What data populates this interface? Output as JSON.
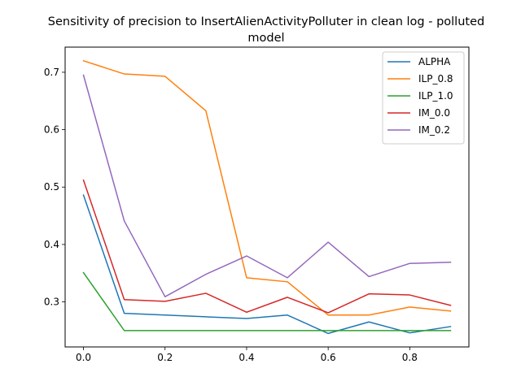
{
  "chart_data": {
    "type": "line",
    "title_lines": [
      "Sensitivity of precision to InsertAlienActivityPolluter in clean log - polluted",
      "model"
    ],
    "xlabel": "",
    "ylabel": "",
    "xlim": [
      -0.045,
      0.945
    ],
    "ylim": [
      0.2215,
      0.7438
    ],
    "xticks": [
      0.0,
      0.2,
      0.4,
      0.6,
      0.8
    ],
    "xtick_labels": [
      "0.0",
      "0.2",
      "0.4",
      "0.6",
      "0.8"
    ],
    "yticks": [
      0.3,
      0.4,
      0.5,
      0.6,
      0.7
    ],
    "ytick_labels": [
      "0.3",
      "0.4",
      "0.5",
      "0.6",
      "0.7"
    ],
    "grid": false,
    "legend_position": "top-right",
    "x": [
      0.0,
      0.1,
      0.2,
      0.3,
      0.4,
      0.5,
      0.6,
      0.7,
      0.8,
      0.9
    ],
    "series": [
      {
        "name": "ALPHA",
        "color": "#1f77b4",
        "values": [
          0.486,
          0.28,
          0.277,
          0.274,
          0.271,
          0.277,
          0.245,
          0.265,
          0.246,
          0.257
        ]
      },
      {
        "name": "ILP_0.8",
        "color": "#ff7f0e",
        "values": [
          0.72,
          0.697,
          0.693,
          0.633,
          0.342,
          0.335,
          0.277,
          0.277,
          0.291,
          0.284
        ]
      },
      {
        "name": "ILP_1.0",
        "color": "#2ca02c",
        "values": [
          0.351,
          0.25,
          0.25,
          0.25,
          0.25,
          0.25,
          0.25,
          0.25,
          0.25,
          0.25
        ]
      },
      {
        "name": "IM_0.0",
        "color": "#d62728",
        "values": [
          0.512,
          0.304,
          0.301,
          0.315,
          0.282,
          0.308,
          0.281,
          0.314,
          0.312,
          0.294
        ]
      },
      {
        "name": "IM_0.2",
        "color": "#9467bd",
        "values": [
          0.695,
          0.441,
          0.309,
          0.348,
          0.38,
          0.342,
          0.404,
          0.344,
          0.367,
          0.369
        ]
      }
    ]
  }
}
